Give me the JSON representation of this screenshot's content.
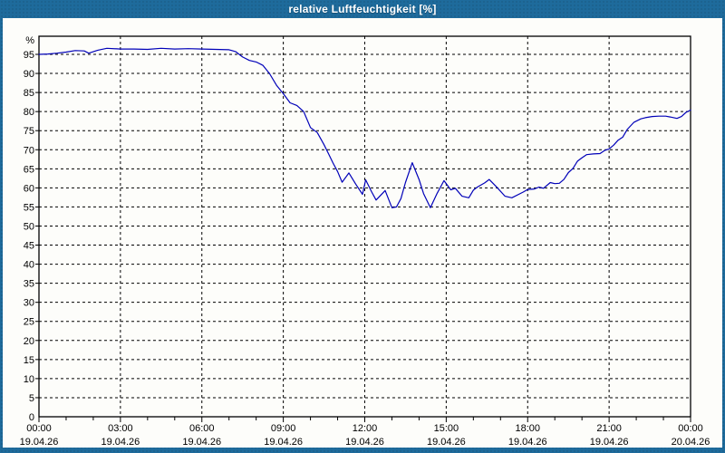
{
  "window": {
    "title": "relative Luftfeuchtigkeit [%]"
  },
  "colors": {
    "frame_blue": "#1e6b9c",
    "title_text": "#ffffff",
    "plot_background": "#fdfdfa",
    "grid": "#000000",
    "axis": "#000000",
    "line": "#0000b8"
  },
  "chart_data": {
    "type": "line",
    "title": "relative Luftfeuchtigkeit [%]",
    "ylabel": "%",
    "ylim": [
      0,
      100
    ],
    "y_tick_min": 5,
    "y_tick_max": 95,
    "y_tick_step": 5,
    "grid": "dashed",
    "legend": "none",
    "x_hours_total": 24,
    "x_minor_tick_every_hours": 1,
    "x_major_tick_every_hours": 3,
    "x_ticks": [
      {
        "time": "00:00",
        "date": "19.04.26"
      },
      {
        "time": "03:00",
        "date": "19.04.26"
      },
      {
        "time": "06:00",
        "date": "19.04.26"
      },
      {
        "time": "09:00",
        "date": "19.04.26"
      },
      {
        "time": "12:00",
        "date": "19.04.26"
      },
      {
        "time": "15:00",
        "date": "19.04.26"
      },
      {
        "time": "18:00",
        "date": "19.04.26"
      },
      {
        "time": "21:00",
        "date": "19.04.26"
      },
      {
        "time": "00:00",
        "date": "20.04.26"
      }
    ],
    "series": [
      {
        "name": "relative Luftfeuchtigkeit",
        "color": "#0000b8",
        "points": [
          [
            "00:00",
            95.0
          ],
          [
            "00:20",
            95.1
          ],
          [
            "00:40",
            95.3
          ],
          [
            "01:00",
            95.6
          ],
          [
            "01:20",
            96.0
          ],
          [
            "01:40",
            95.9
          ],
          [
            "01:50",
            95.3
          ],
          [
            "02:10",
            96.1
          ],
          [
            "02:30",
            96.6
          ],
          [
            "03:00",
            96.4
          ],
          [
            "03:30",
            96.4
          ],
          [
            "04:00",
            96.3
          ],
          [
            "04:30",
            96.6
          ],
          [
            "05:00",
            96.4
          ],
          [
            "05:30",
            96.5
          ],
          [
            "06:00",
            96.4
          ],
          [
            "06:30",
            96.3
          ],
          [
            "07:00",
            96.2
          ],
          [
            "07:15",
            95.7
          ],
          [
            "07:30",
            94.3
          ],
          [
            "07:45",
            93.4
          ],
          [
            "08:00",
            93.0
          ],
          [
            "08:15",
            92.1
          ],
          [
            "08:30",
            89.9
          ],
          [
            "08:45",
            86.9
          ],
          [
            "09:00",
            84.7
          ],
          [
            "09:15",
            82.3
          ],
          [
            "09:30",
            81.6
          ],
          [
            "09:45",
            80.0
          ],
          [
            "10:00",
            75.8
          ],
          [
            "10:15",
            74.5
          ],
          [
            "10:30",
            71.3
          ],
          [
            "10:40",
            68.9
          ],
          [
            "10:50",
            66.5
          ],
          [
            "11:00",
            64.3
          ],
          [
            "11:10",
            61.5
          ],
          [
            "11:25",
            63.9
          ],
          [
            "11:40",
            61.0
          ],
          [
            "11:55",
            58.3
          ],
          [
            "12:02",
            62.1
          ],
          [
            "12:15",
            59.0
          ],
          [
            "12:25",
            56.8
          ],
          [
            "12:45",
            59.3
          ],
          [
            "13:00",
            54.8
          ],
          [
            "13:10",
            55.0
          ],
          [
            "13:20",
            57.2
          ],
          [
            "13:30",
            61.4
          ],
          [
            "13:45",
            66.6
          ],
          [
            "14:00",
            62.2
          ],
          [
            "14:10",
            58.5
          ],
          [
            "14:25",
            54.8
          ],
          [
            "14:40",
            58.6
          ],
          [
            "14:55",
            61.9
          ],
          [
            "15:10",
            59.5
          ],
          [
            "15:20",
            59.9
          ],
          [
            "15:35",
            57.8
          ],
          [
            "15:50",
            57.4
          ],
          [
            "16:00",
            59.4
          ],
          [
            "16:10",
            60.3
          ],
          [
            "16:25",
            61.3
          ],
          [
            "16:35",
            62.2
          ],
          [
            "16:50",
            60.4
          ],
          [
            "17:10",
            57.8
          ],
          [
            "17:25",
            57.4
          ],
          [
            "17:50",
            58.9
          ],
          [
            "18:00",
            59.6
          ],
          [
            "18:15",
            59.7
          ],
          [
            "18:25",
            60.2
          ],
          [
            "18:35",
            59.9
          ],
          [
            "18:50",
            61.4
          ],
          [
            "19:00",
            61.1
          ],
          [
            "19:10",
            61.2
          ],
          [
            "19:20",
            62.2
          ],
          [
            "19:30",
            64.0
          ],
          [
            "19:40",
            65.1
          ],
          [
            "19:50",
            67.0
          ],
          [
            "20:00",
            67.9
          ],
          [
            "20:10",
            68.7
          ],
          [
            "20:25",
            68.9
          ],
          [
            "20:40",
            69.0
          ],
          [
            "20:50",
            69.8
          ],
          [
            "21:00",
            70.2
          ],
          [
            "21:10",
            71.2
          ],
          [
            "21:20",
            72.5
          ],
          [
            "21:30",
            73.3
          ],
          [
            "21:40",
            75.3
          ],
          [
            "21:55",
            77.2
          ],
          [
            "22:10",
            78.1
          ],
          [
            "22:20",
            78.4
          ],
          [
            "22:35",
            78.7
          ],
          [
            "22:50",
            78.8
          ],
          [
            "23:05",
            78.8
          ],
          [
            "23:15",
            78.6
          ],
          [
            "23:30",
            78.2
          ],
          [
            "23:40",
            78.7
          ],
          [
            "23:50",
            79.8
          ],
          [
            "24:00",
            80.4
          ]
        ]
      }
    ]
  }
}
